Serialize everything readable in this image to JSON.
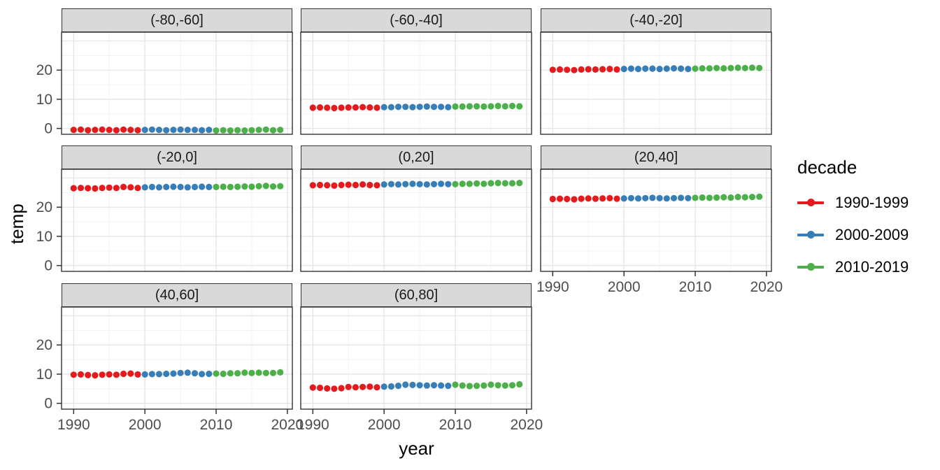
{
  "chart_data": {
    "type": "scatter",
    "title": "",
    "xlabel": "year",
    "ylabel": "temp",
    "grid": "major+minor",
    "x_ticks": [
      1990,
      2000,
      2010,
      2020
    ],
    "x_minor": [
      1995,
      2005,
      2015
    ],
    "y_ticks": [
      0,
      10,
      20
    ],
    "y_major_lines": [
      0,
      10,
      20,
      30
    ],
    "y_minor": [
      5,
      15,
      25
    ],
    "x_range": [
      1988.3,
      2020.7
    ],
    "y_range": [
      -2,
      33
    ],
    "series_by": "decade",
    "legend": {
      "title": "decade",
      "position": "right",
      "items": [
        {
          "label": "1990-1999",
          "color": "#E41A1C",
          "year_start": 1990,
          "year_end": 1999
        },
        {
          "label": "2000-2009",
          "color": "#377EB8",
          "year_start": 2000,
          "year_end": 2009
        },
        {
          "label": "2010-2019",
          "color": "#4DAF4A",
          "year_start": 2010,
          "year_end": 2019
        }
      ]
    },
    "years": [
      1990,
      1991,
      1992,
      1993,
      1994,
      1995,
      1996,
      1997,
      1998,
      1999,
      2000,
      2001,
      2002,
      2003,
      2004,
      2005,
      2006,
      2007,
      2008,
      2009,
      2010,
      2011,
      2012,
      2013,
      2014,
      2015,
      2016,
      2017,
      2018,
      2019
    ],
    "facets": [
      {
        "label": "(-80,-60]",
        "row": 0,
        "col": 0,
        "show_y_axis": true,
        "show_x_axis": false,
        "values": [
          -0.5,
          -0.4,
          -0.6,
          -0.5,
          -0.4,
          -0.5,
          -0.6,
          -0.4,
          -0.5,
          -0.6,
          -0.5,
          -0.4,
          -0.5,
          -0.6,
          -0.5,
          -0.4,
          -0.5,
          -0.5,
          -0.6,
          -0.5,
          -0.7,
          -0.6,
          -0.7,
          -0.6,
          -0.7,
          -0.6,
          -0.5,
          -0.4,
          -0.6,
          -0.5
        ]
      },
      {
        "label": "(-60,-40]",
        "row": 0,
        "col": 1,
        "show_y_axis": false,
        "show_x_axis": false,
        "values": [
          7.1,
          7.2,
          7.1,
          7.0,
          7.1,
          7.2,
          7.2,
          7.3,
          7.2,
          7.1,
          7.3,
          7.3,
          7.4,
          7.4,
          7.3,
          7.4,
          7.5,
          7.4,
          7.4,
          7.3,
          7.5,
          7.5,
          7.6,
          7.6,
          7.5,
          7.6,
          7.7,
          7.6,
          7.7,
          7.6
        ]
      },
      {
        "label": "(-40,-20]",
        "row": 0,
        "col": 2,
        "show_y_axis": false,
        "show_x_axis": false,
        "values": [
          20.1,
          20.2,
          20.1,
          20.0,
          20.2,
          20.3,
          20.2,
          20.3,
          20.4,
          20.2,
          20.4,
          20.5,
          20.4,
          20.5,
          20.5,
          20.4,
          20.5,
          20.6,
          20.5,
          20.4,
          20.5,
          20.6,
          20.6,
          20.7,
          20.6,
          20.7,
          20.8,
          20.7,
          20.8,
          20.7
        ]
      },
      {
        "label": "(-20,0]",
        "row": 1,
        "col": 0,
        "show_y_axis": true,
        "show_x_axis": false,
        "values": [
          26.5,
          26.6,
          26.5,
          26.4,
          26.6,
          26.7,
          26.6,
          26.9,
          26.8,
          26.6,
          26.8,
          26.9,
          26.8,
          26.9,
          27.0,
          26.9,
          26.8,
          26.9,
          27.0,
          26.9,
          26.9,
          27.0,
          26.9,
          27.0,
          27.1,
          27.0,
          27.2,
          27.3,
          27.1,
          27.2
        ]
      },
      {
        "label": "(0,20]",
        "row": 1,
        "col": 1,
        "show_y_axis": false,
        "show_x_axis": false,
        "values": [
          27.5,
          27.6,
          27.5,
          27.4,
          27.6,
          27.7,
          27.6,
          27.8,
          27.6,
          27.5,
          27.8,
          27.9,
          27.8,
          27.9,
          28.0,
          27.9,
          27.8,
          27.9,
          28.0,
          27.9,
          27.9,
          28.0,
          28.0,
          28.1,
          28.0,
          28.2,
          28.3,
          28.2,
          28.2,
          28.3
        ]
      },
      {
        "label": "(20,40]",
        "row": 1,
        "col": 2,
        "show_y_axis": false,
        "show_x_axis": true,
        "values": [
          22.8,
          22.9,
          22.8,
          22.7,
          22.9,
          23.0,
          22.9,
          23.0,
          23.1,
          22.9,
          23.0,
          23.1,
          23.0,
          23.1,
          23.2,
          23.1,
          23.0,
          23.1,
          23.2,
          23.1,
          23.2,
          23.3,
          23.2,
          23.3,
          23.4,
          23.3,
          23.5,
          23.4,
          23.5,
          23.6
        ]
      },
      {
        "label": "(40,60]",
        "row": 2,
        "col": 0,
        "show_y_axis": true,
        "show_x_axis": true,
        "values": [
          9.8,
          9.9,
          9.7,
          9.6,
          9.8,
          9.9,
          9.8,
          10.1,
          10.2,
          9.9,
          9.9,
          10.0,
          10.0,
          10.1,
          10.2,
          10.4,
          10.5,
          10.3,
          10.0,
          10.1,
          10.2,
          10.1,
          10.3,
          10.3,
          10.5,
          10.4,
          10.5,
          10.4,
          10.4,
          10.6
        ]
      },
      {
        "label": "(60,80]",
        "row": 2,
        "col": 1,
        "show_y_axis": false,
        "show_x_axis": true,
        "values": [
          5.4,
          5.3,
          5.1,
          5.0,
          5.2,
          5.6,
          5.5,
          5.6,
          5.7,
          5.5,
          5.7,
          5.8,
          6.0,
          6.4,
          6.3,
          6.2,
          6.1,
          6.2,
          6.1,
          6.0,
          6.4,
          6.1,
          5.9,
          6.0,
          6.1,
          6.4,
          6.2,
          6.1,
          6.2,
          6.5
        ]
      }
    ],
    "style_colors": {
      "strip_fill": "#d9d9d9",
      "panel_border": "#333333",
      "grid_major": "#e4e4e4",
      "grid_minor": "#f1f1f1",
      "tick_label": "#4d4d4d"
    }
  }
}
